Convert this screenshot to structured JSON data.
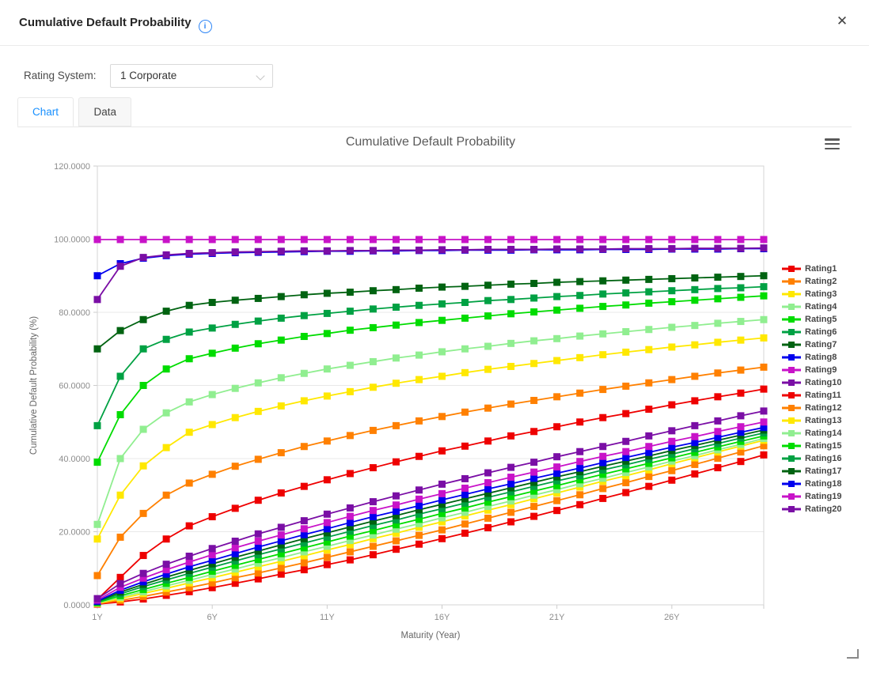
{
  "header": {
    "title": "Cumulative Default Probability",
    "info_icon_glyph": "i",
    "close_glyph": "✕"
  },
  "icons": {
    "info": "info-circle-icon",
    "close": "close-icon",
    "select_arrow": "chevron-down-icon",
    "chart_menu": "hamburger-menu-icon",
    "resize": "resize-corner-icon"
  },
  "controls": {
    "rating_system_label": "Rating System:",
    "rating_system_value": "1 Corporate"
  },
  "tabs": [
    {
      "label": "Chart",
      "active": true
    },
    {
      "label": "Data",
      "active": false
    }
  ],
  "chart_data": {
    "type": "line",
    "title": "Cumulative Default Probability",
    "xlabel": "Maturity (Year)",
    "ylabel": "Cumulative Default Probability (%)",
    "marker": "square",
    "grid": "horizontal",
    "legend_position": "right",
    "xlim": [
      1,
      30
    ],
    "ylim": [
      0,
      120
    ],
    "x": [
      1,
      2,
      3,
      4,
      5,
      6,
      7,
      8,
      9,
      10,
      11,
      12,
      13,
      14,
      15,
      16,
      17,
      18,
      19,
      20,
      21,
      22,
      23,
      24,
      25,
      26,
      27,
      28,
      29,
      30
    ],
    "x_tick_values": [
      1,
      6,
      11,
      16,
      21,
      26
    ],
    "x_tick_labels": [
      "1Y",
      "6Y",
      "11Y",
      "16Y",
      "21Y",
      "26Y"
    ],
    "y_tick_values": [
      0,
      20,
      40,
      60,
      80,
      100,
      120
    ],
    "y_tick_labels": [
      "0.0000",
      "20.0000",
      "40.0000",
      "60.0000",
      "80.0000",
      "100.0000",
      "120.0000"
    ],
    "series": [
      {
        "name": "Rating1",
        "color": "#ee0000",
        "values": [
          1.5,
          7.5,
          13.5,
          18.0,
          21.6,
          24.1,
          26.4,
          28.6,
          30.6,
          32.4,
          34.2,
          35.9,
          37.5,
          39.1,
          40.6,
          42.1,
          43.4,
          44.8,
          46.2,
          47.4,
          48.7,
          50.0,
          51.2,
          52.3,
          53.5,
          54.7,
          55.8,
          56.9,
          57.9,
          59.0
        ]
      },
      {
        "name": "Rating2",
        "color": "#ff8000",
        "values": [
          8.0,
          18.5,
          25.0,
          30.0,
          33.3,
          35.7,
          37.9,
          39.8,
          41.6,
          43.3,
          44.8,
          46.3,
          47.7,
          49.0,
          50.3,
          51.5,
          52.7,
          53.8,
          54.9,
          55.9,
          56.9,
          57.9,
          58.9,
          59.8,
          60.7,
          61.6,
          62.5,
          63.4,
          64.2,
          65.0
        ]
      },
      {
        "name": "Rating3",
        "color": "#ffe800",
        "values": [
          18.0,
          30.0,
          38.0,
          43.0,
          47.2,
          49.3,
          51.2,
          52.9,
          54.4,
          55.8,
          57.1,
          58.3,
          59.5,
          60.6,
          61.6,
          62.5,
          63.5,
          64.4,
          65.2,
          66.0,
          66.8,
          67.6,
          68.4,
          69.1,
          69.8,
          70.5,
          71.1,
          71.8,
          72.4,
          73.0
        ]
      },
      {
        "name": "Rating4",
        "color": "#90ee90",
        "values": [
          22.0,
          40.0,
          48.0,
          52.5,
          55.5,
          57.5,
          59.2,
          60.7,
          62.1,
          63.3,
          64.5,
          65.5,
          66.5,
          67.5,
          68.3,
          69.2,
          70.0,
          70.7,
          71.5,
          72.2,
          72.8,
          73.5,
          74.1,
          74.7,
          75.3,
          75.9,
          76.4,
          77.0,
          77.5,
          78.0
        ]
      },
      {
        "name": "Rating5",
        "color": "#00dc00",
        "values": [
          39.0,
          52.0,
          60.0,
          64.5,
          67.3,
          68.8,
          70.2,
          71.4,
          72.4,
          73.4,
          74.2,
          75.1,
          75.8,
          76.5,
          77.2,
          77.8,
          78.4,
          79.0,
          79.6,
          80.1,
          80.6,
          81.1,
          81.6,
          82.0,
          82.5,
          82.9,
          83.3,
          83.7,
          84.1,
          84.5
        ]
      },
      {
        "name": "Rating6",
        "color": "#00a143",
        "values": [
          49.0,
          62.5,
          70.0,
          72.6,
          74.6,
          75.7,
          76.7,
          77.6,
          78.4,
          79.1,
          79.7,
          80.3,
          80.9,
          81.4,
          81.9,
          82.3,
          82.7,
          83.2,
          83.5,
          83.9,
          84.3,
          84.6,
          85.0,
          85.3,
          85.6,
          85.9,
          86.2,
          86.5,
          86.7,
          87.0
        ]
      },
      {
        "name": "Rating7",
        "color": "#006311",
        "values": [
          70.0,
          75.0,
          78.0,
          80.3,
          81.9,
          82.7,
          83.3,
          83.8,
          84.3,
          84.8,
          85.2,
          85.5,
          85.9,
          86.2,
          86.6,
          86.9,
          87.1,
          87.4,
          87.7,
          87.9,
          88.2,
          88.4,
          88.6,
          88.8,
          89.0,
          89.2,
          89.4,
          89.6,
          89.8,
          90.0
        ]
      },
      {
        "name": "Rating8",
        "color": "#0000ee",
        "values": [
          90.0,
          93.3,
          94.8,
          95.5,
          95.9,
          96.1,
          96.3,
          96.4,
          96.5,
          96.6,
          96.7,
          96.7,
          96.8,
          96.8,
          96.9,
          96.9,
          97.0,
          97.0,
          97.0,
          97.1,
          97.1,
          97.1,
          97.2,
          97.2,
          97.2,
          97.3,
          97.3,
          97.3,
          97.4,
          97.4
        ]
      },
      {
        "name": "Rating9",
        "color": "#c813c8",
        "values": [
          99.9,
          99.9,
          99.9,
          99.9,
          99.9,
          99.9,
          99.9,
          99.9,
          99.9,
          99.9,
          99.9,
          99.9,
          99.9,
          99.9,
          99.9,
          99.9,
          99.9,
          99.9,
          99.9,
          99.9,
          99.9,
          99.9,
          99.9,
          99.9,
          99.9,
          99.9,
          99.9,
          99.9,
          99.9,
          99.9
        ]
      },
      {
        "name": "Rating10",
        "color": "#7a0ea5",
        "values": [
          83.5,
          92.6,
          95.0,
          95.7,
          96.1,
          96.3,
          96.5,
          96.6,
          96.7,
          96.8,
          96.8,
          96.9,
          96.9,
          97.0,
          97.0,
          97.1,
          97.1,
          97.2,
          97.2,
          97.2,
          97.3,
          97.3,
          97.3,
          97.4,
          97.4,
          97.4,
          97.5,
          97.5,
          97.5,
          97.6
        ]
      },
      {
        "name": "Rating11",
        "color": "#ee0000",
        "values": [
          0.2,
          0.8,
          1.6,
          2.6,
          3.6,
          4.7,
          5.9,
          7.1,
          8.4,
          9.6,
          11.0,
          12.3,
          13.7,
          15.2,
          16.6,
          18.1,
          19.6,
          21.1,
          22.7,
          24.2,
          25.8,
          27.4,
          29.1,
          30.7,
          32.4,
          34.1,
          35.8,
          37.5,
          39.2,
          41.0
        ]
      },
      {
        "name": "Rating12",
        "color": "#ff8000",
        "values": [
          0.3,
          1.2,
          2.3,
          3.5,
          4.7,
          6.0,
          7.4,
          8.7,
          10.1,
          11.5,
          13.0,
          14.5,
          16.0,
          17.5,
          19.0,
          20.5,
          22.1,
          23.7,
          25.3,
          26.9,
          28.5,
          30.1,
          31.8,
          33.4,
          35.1,
          36.7,
          38.4,
          40.1,
          41.8,
          43.5
        ]
      },
      {
        "name": "Rating13",
        "color": "#ffe800",
        "values": [
          0.4,
          1.7,
          3.1,
          4.5,
          6.0,
          7.4,
          8.9,
          10.4,
          11.9,
          13.4,
          15.0,
          16.5,
          18.1,
          19.6,
          21.2,
          22.7,
          24.3,
          25.9,
          27.4,
          29.0,
          30.6,
          32.2,
          33.8,
          35.3,
          36.9,
          38.6,
          40.2,
          41.8,
          43.4,
          45.0
        ]
      },
      {
        "name": "Rating14",
        "color": "#90ee90",
        "values": [
          0.5,
          2.1,
          3.6,
          5.2,
          6.7,
          8.3,
          9.8,
          11.4,
          12.9,
          14.5,
          16.0,
          17.6,
          19.1,
          20.7,
          22.2,
          23.8,
          25.3,
          26.9,
          28.4,
          30.0,
          31.5,
          33.1,
          34.6,
          36.2,
          37.7,
          39.3,
          40.8,
          42.4,
          43.9,
          45.5
        ]
      },
      {
        "name": "Rating15",
        "color": "#00dc00",
        "values": [
          0.6,
          2.5,
          4.2,
          5.9,
          7.5,
          9.2,
          10.8,
          12.4,
          14.0,
          15.6,
          17.2,
          18.8,
          20.3,
          21.9,
          23.4,
          25.0,
          26.5,
          28.1,
          29.6,
          31.1,
          32.6,
          34.2,
          35.7,
          37.2,
          38.7,
          40.2,
          41.7,
          43.2,
          44.7,
          46.2
        ]
      },
      {
        "name": "Rating16",
        "color": "#00a143",
        "values": [
          0.8,
          3.0,
          5.0,
          6.8,
          8.6,
          10.3,
          12.0,
          13.7,
          15.3,
          16.9,
          18.5,
          20.1,
          21.7,
          23.2,
          24.8,
          26.3,
          27.8,
          29.4,
          30.9,
          32.4,
          33.9,
          35.3,
          36.9,
          38.3,
          39.8,
          41.2,
          42.7,
          44.1,
          45.6,
          47.0
        ]
      },
      {
        "name": "Rating17",
        "color": "#006311",
        "values": [
          0.9,
          3.5,
          5.6,
          7.6,
          9.4,
          11.2,
          13.0,
          14.7,
          16.4,
          18.1,
          19.7,
          21.3,
          22.9,
          24.4,
          26.0,
          27.5,
          29.0,
          30.5,
          32.0,
          33.5,
          35.0,
          36.4,
          37.9,
          39.3,
          40.7,
          42.2,
          43.6,
          45.0,
          46.4,
          47.8
        ]
      },
      {
        "name": "Rating18",
        "color": "#0000ee",
        "values": [
          1.0,
          4.0,
          6.3,
          8.4,
          10.4,
          12.2,
          14.0,
          15.8,
          17.5,
          19.2,
          20.8,
          22.5,
          24.1,
          25.6,
          27.1,
          28.7,
          30.2,
          31.7,
          33.1,
          34.6,
          36.0,
          37.4,
          38.9,
          40.3,
          41.7,
          43.1,
          44.4,
          45.8,
          47.2,
          48.5
        ]
      },
      {
        "name": "Rating19",
        "color": "#c813c8",
        "values": [
          1.3,
          4.8,
          7.3,
          9.6,
          11.7,
          13.7,
          15.6,
          17.4,
          19.1,
          20.8,
          22.5,
          24.2,
          25.8,
          27.3,
          28.9,
          30.4,
          31.9,
          33.4,
          34.9,
          36.3,
          37.7,
          39.2,
          40.6,
          41.9,
          43.3,
          44.7,
          46.0,
          47.4,
          48.7,
          50.0
        ]
      },
      {
        "name": "Rating20",
        "color": "#7a0ea5",
        "values": [
          1.7,
          5.8,
          8.6,
          11.1,
          13.3,
          15.4,
          17.4,
          19.4,
          21.2,
          23.0,
          24.8,
          26.5,
          28.2,
          29.8,
          31.4,
          33.0,
          34.5,
          36.1,
          37.6,
          39.0,
          40.5,
          41.9,
          43.3,
          44.7,
          46.2,
          47.6,
          49.0,
          50.3,
          51.7,
          53.0
        ]
      }
    ]
  }
}
